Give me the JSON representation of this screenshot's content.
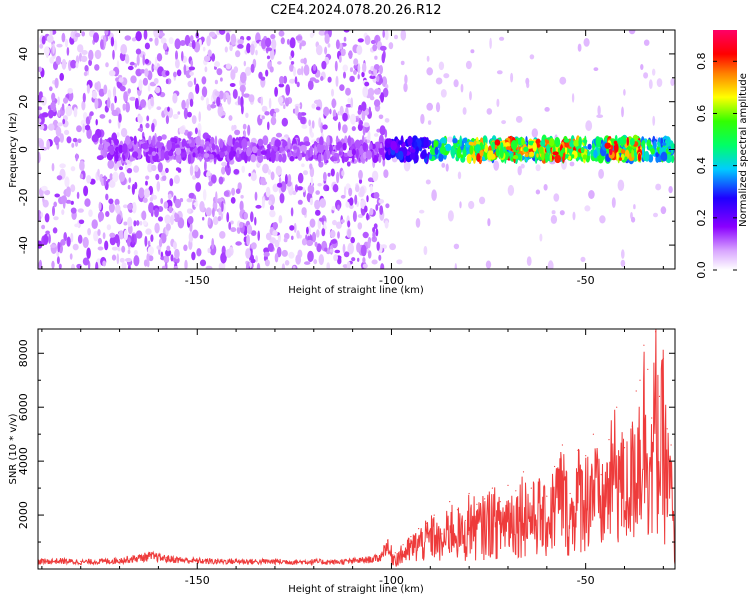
{
  "title": "C2E4.2024.078.20.26.R12",
  "chart_data": [
    {
      "type": "heatmap",
      "xlabel": "Height of straight line (km)",
      "ylabel": "Frequency (Hz)",
      "xlim": [
        -191,
        -27
      ],
      "ylim": [
        -50,
        50
      ],
      "xticks": [
        -150,
        -100,
        -50
      ],
      "yticks": [
        -40,
        -20,
        0,
        20,
        40
      ],
      "colorbar": {
        "label": "Normalized spectral amplitude",
        "range": [
          0,
          0.92
        ],
        "ticks": [
          0.0,
          0.2,
          0.4,
          0.6,
          0.8
        ],
        "colormap": "rainbow (white→violet→blue→cyan→green→yellow→red→magenta)"
      },
      "description_of_values": {
        "background_noise_region_km": [
          -191,
          -101
        ],
        "background_noise_amplitude": 0.08,
        "signal_band_center_hz": 0,
        "signal_band_halfwidth_hz": 4,
        "signal_start_km": -101,
        "signal_band_segments": [
          {
            "x_start": -175,
            "x_end": -101,
            "amplitude": 0.15
          },
          {
            "x_start": -101,
            "x_end": -90,
            "amplitude": 0.3
          },
          {
            "x_start": -90,
            "x_end": -27,
            "amplitude": 0.55
          },
          {
            "x_start": -80,
            "x_end": -50,
            "amplitude": 0.8
          },
          {
            "x_start": -45,
            "x_end": -36,
            "amplitude": 0.85
          }
        ]
      }
    },
    {
      "type": "line",
      "xlabel": "Height of straight line (km)",
      "ylabel": "SNR (10 * v/v)",
      "xlim": [
        -191,
        -27
      ],
      "ylim": [
        0,
        8900
      ],
      "xticks": [
        -150,
        -100,
        -50
      ],
      "yticks": [
        2000,
        4000,
        6000,
        8000
      ],
      "series": [
        {
          "color": "#ee3b3b",
          "x": [
            -191,
            -185,
            -180,
            -175,
            -170,
            -165,
            -162,
            -158,
            -155,
            -150,
            -145,
            -140,
            -135,
            -130,
            -125,
            -120,
            -115,
            -110,
            -106,
            -103,
            -101,
            -99,
            -97,
            -95,
            -93,
            -91,
            -89,
            -87,
            -85,
            -83,
            -81,
            -80,
            -78,
            -76,
            -74,
            -72,
            -70,
            -68,
            -66,
            -64,
            -62,
            -60,
            -58,
            -56,
            -54,
            -52,
            -50,
            -48,
            -46,
            -44,
            -42,
            -40,
            -38,
            -37,
            -36,
            -35,
            -34,
            -33,
            -32,
            -31,
            -30,
            -29,
            -28,
            -27
          ],
          "y": [
            300,
            330,
            280,
            310,
            350,
            450,
            520,
            420,
            380,
            330,
            310,
            320,
            300,
            310,
            290,
            300,
            280,
            320,
            380,
            450,
            1050,
            600,
            900,
            1200,
            1500,
            1700,
            2000,
            1300,
            2500,
            2200,
            1800,
            2800,
            2400,
            2600,
            3000,
            2500,
            3100,
            2900,
            3600,
            3000,
            3300,
            2700,
            3800,
            4600,
            2800,
            4400,
            4200,
            5000,
            3500,
            4800,
            6000,
            4500,
            5300,
            6600,
            7000,
            8300,
            7400,
            5600,
            8800,
            6400,
            7800,
            5200,
            4600,
            600
          ]
        }
      ]
    }
  ]
}
